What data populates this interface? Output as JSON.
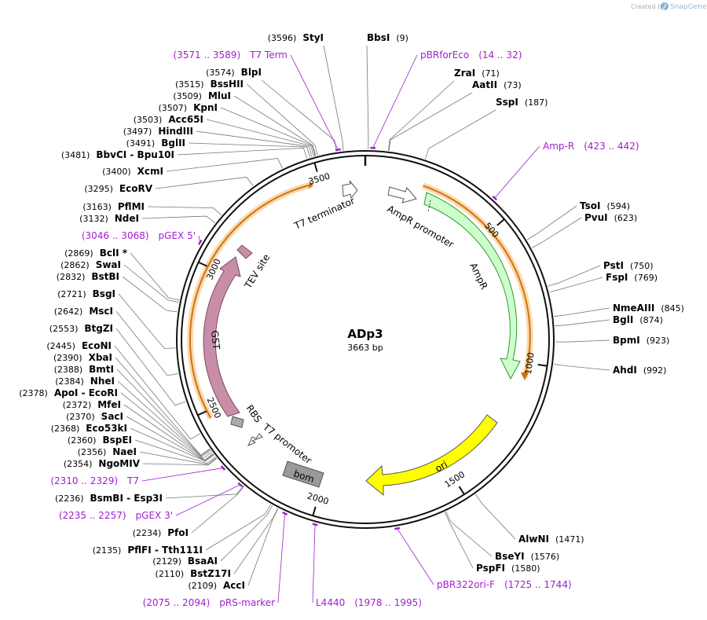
{
  "credit": {
    "created_by": "Created by",
    "brand": "SnapGene",
    "logo_icon": "snapgene-logo-icon"
  },
  "plasmid": {
    "name": "ADp3",
    "size_label": "3663 bp",
    "length": 3663
  },
  "colors": {
    "backbone": "#111111",
    "primer": "#a020d0",
    "enzyme_line": "#777777",
    "amp_fill": "#ccffcc",
    "amp_stroke": "#339933",
    "ori_fill": "#ffff00",
    "gst_fill": "#c88ea8",
    "gst_stroke": "#7a4a60",
    "tev_fill": "#c88ea8",
    "bom_fill": "#999999",
    "rbs_fill": "#aaaaaa",
    "orf_fill": "#ffcc66",
    "orf_stroke": "#c8741e"
  },
  "ticks": [
    {
      "bp": 500,
      "label": "500"
    },
    {
      "bp": 1000,
      "label": "1000"
    },
    {
      "bp": 1500,
      "label": "1500"
    },
    {
      "bp": 2000,
      "label": "2000"
    },
    {
      "bp": 2500,
      "label": "2500"
    },
    {
      "bp": 3000,
      "label": "3000"
    },
    {
      "bp": 3500,
      "label": "3500"
    }
  ],
  "enzymes_right": [
    {
      "name": "BbsI",
      "pos": "(9)",
      "bp": 9
    },
    {
      "name": "ZraI",
      "pos": "(71)",
      "bp": 71
    },
    {
      "name": "AatII",
      "pos": "(73)",
      "bp": 73
    },
    {
      "name": "SspI",
      "pos": "(187)",
      "bp": 187
    },
    {
      "name": "TsoI",
      "pos": "(594)",
      "bp": 594
    },
    {
      "name": "PvuI",
      "pos": "(623)",
      "bp": 623
    },
    {
      "name": "PstI",
      "pos": "(750)",
      "bp": 750
    },
    {
      "name": "FspI",
      "pos": "(769)",
      "bp": 769
    },
    {
      "name": "NmeAIII",
      "pos": "(845)",
      "bp": 845
    },
    {
      "name": "BglI",
      "pos": "(874)",
      "bp": 874
    },
    {
      "name": "BpmI",
      "pos": "(923)",
      "bp": 923
    },
    {
      "name": "AhdI",
      "pos": "(992)",
      "bp": 992
    },
    {
      "name": "AlwNI",
      "pos": "(1471)",
      "bp": 1471
    },
    {
      "name": "BseYI",
      "pos": "(1576)",
      "bp": 1576
    },
    {
      "name": "PspFI",
      "pos": "(1580)",
      "bp": 1580
    }
  ],
  "enzymes_left": [
    {
      "name": "StyI",
      "pos": "(3596)",
      "bp": 3596
    },
    {
      "name": "BlpI",
      "pos": "(3574)",
      "bp": 3574
    },
    {
      "name": "BssHII",
      "pos": "(3515)",
      "bp": 3515
    },
    {
      "name": "MluI",
      "pos": "(3509)",
      "bp": 3509
    },
    {
      "name": "KpnI",
      "pos": "(3507)",
      "bp": 3507
    },
    {
      "name": "Acc65I",
      "pos": "(3503)",
      "bp": 3503
    },
    {
      "name": "HindIII",
      "pos": "(3497)",
      "bp": 3497
    },
    {
      "name": "BglII",
      "pos": "(3491)",
      "bp": 3491
    },
    {
      "name": "BbvCI  -  Bpu10I",
      "pos": "(3481)",
      "bp": 3481
    },
    {
      "name": "XcmI",
      "pos": "(3400)",
      "bp": 3400
    },
    {
      "name": "EcoRV",
      "pos": "(3295)",
      "bp": 3295
    },
    {
      "name": "PflMI",
      "pos": "(3163)",
      "bp": 3163
    },
    {
      "name": "NdeI",
      "pos": "(3132)",
      "bp": 3132
    },
    {
      "name": "BclI *",
      "pos": "(2869)",
      "bp": 2869
    },
    {
      "name": "SwaI",
      "pos": "(2862)",
      "bp": 2862
    },
    {
      "name": "BstBI",
      "pos": "(2832)",
      "bp": 2832
    },
    {
      "name": "BsgI",
      "pos": "(2721)",
      "bp": 2721
    },
    {
      "name": "MscI",
      "pos": "(2642)",
      "bp": 2642
    },
    {
      "name": "BtgZI",
      "pos": "(2553)",
      "bp": 2553
    },
    {
      "name": "EcoNI",
      "pos": "(2445)",
      "bp": 2445
    },
    {
      "name": "XbaI",
      "pos": "(2390)",
      "bp": 2390
    },
    {
      "name": "BmtI",
      "pos": "(2388)",
      "bp": 2388
    },
    {
      "name": "NheI",
      "pos": "(2384)",
      "bp": 2384
    },
    {
      "name": "ApoI  -  EcoRI",
      "pos": "(2378)",
      "bp": 2378
    },
    {
      "name": "MfeI",
      "pos": "(2372)",
      "bp": 2372
    },
    {
      "name": "SacI",
      "pos": "(2370)",
      "bp": 2370
    },
    {
      "name": "Eco53kI",
      "pos": "(2368)",
      "bp": 2368
    },
    {
      "name": "BspEI",
      "pos": "(2360)",
      "bp": 2360
    },
    {
      "name": "NaeI",
      "pos": "(2356)",
      "bp": 2356
    },
    {
      "name": "NgoMIV",
      "pos": "(2354)",
      "bp": 2354
    },
    {
      "name": "BsmBI  -  Esp3I",
      "pos": "(2236)",
      "bp": 2236
    },
    {
      "name": "PfoI",
      "pos": "(2234)",
      "bp": 2234
    },
    {
      "name": "PflFI  -  Tth111I",
      "pos": "(2135)",
      "bp": 2135
    },
    {
      "name": "BsaAI",
      "pos": "(2129)",
      "bp": 2129
    },
    {
      "name": "BstZ17I",
      "pos": "(2110)",
      "bp": 2110
    },
    {
      "name": "AccI",
      "pos": "(2109)",
      "bp": 2109
    }
  ],
  "primers": [
    {
      "name": "T7 Term",
      "range": "(3571 .. 3589)",
      "bp": 3580
    },
    {
      "name": "pBRforEco",
      "range": "(14 .. 32)",
      "bp": 23
    },
    {
      "name": "Amp-R",
      "range": "(423 .. 442)",
      "bp": 432
    },
    {
      "name": "pGEX 5'",
      "range": "(3046 .. 3068)",
      "bp": 3057
    },
    {
      "name": "T7",
      "range": "(2310 .. 2329)",
      "bp": 2319
    },
    {
      "name": "pGEX 3'",
      "range": "(2235 .. 2257)",
      "bp": 2246
    },
    {
      "name": "pRS-marker",
      "range": "(2075 .. 2094)",
      "bp": 2084
    },
    {
      "name": "L4440",
      "range": "(1978 .. 1995)",
      "bp": 1986
    },
    {
      "name": "pBR322ori-F",
      "range": "(1725 .. 1744)",
      "bp": 1734
    }
  ],
  "features": [
    {
      "name": "T7 terminator"
    },
    {
      "name": "AmpR promoter"
    },
    {
      "name": "AmpR"
    },
    {
      "name": "ori"
    },
    {
      "name": "bom"
    },
    {
      "name": "T7 promoter"
    },
    {
      "name": "RBS"
    },
    {
      "name": "GST"
    },
    {
      "name": "TEV site"
    }
  ]
}
